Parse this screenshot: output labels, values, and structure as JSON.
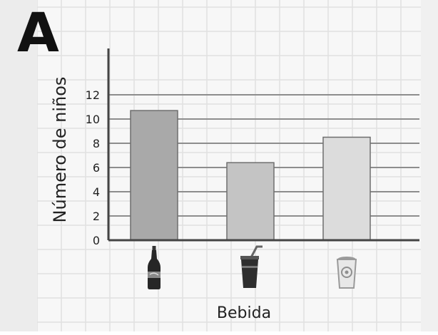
{
  "panel_label": "A",
  "chart_data": {
    "type": "bar",
    "title": "",
    "ylabel": "Número de niños",
    "xlabel": "Bebida",
    "categories": [
      "cola-bottle-icon",
      "cup-with-straw-icon",
      "yogurt-drink-icon"
    ],
    "values": [
      10.7,
      6.4,
      8.5
    ],
    "yticks": [
      0,
      2,
      4,
      6,
      8,
      10,
      12
    ],
    "ylim": [
      0,
      13
    ],
    "grid": true,
    "bar_colors": [
      "#a9a9a9",
      "#c4c4c4",
      "#dcdcdc"
    ]
  }
}
